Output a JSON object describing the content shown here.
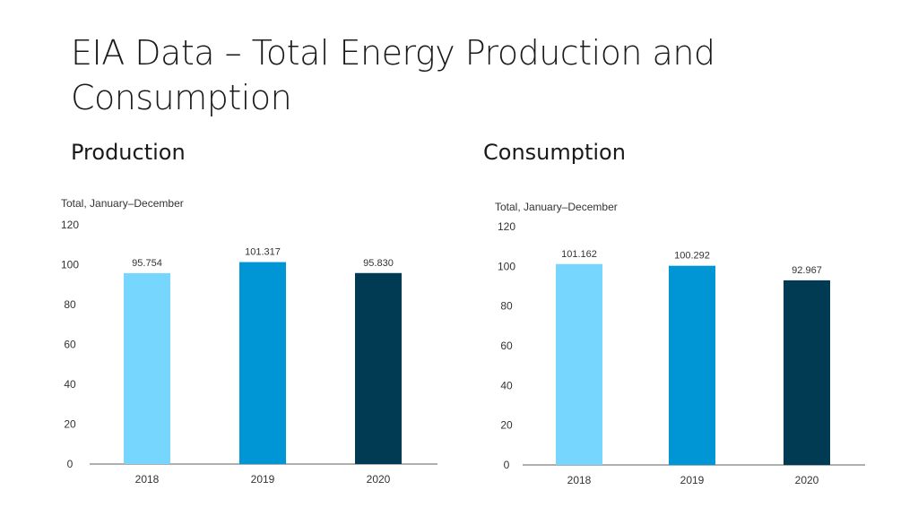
{
  "title": "EIA Data – Total Energy Production and Consumption",
  "chart_data": [
    {
      "type": "bar",
      "heading": "Production",
      "subtitle": "Total, January–December",
      "categories": [
        "2018",
        "2019",
        "2020"
      ],
      "values": [
        95.754,
        101.317,
        95.83
      ],
      "value_labels": [
        "95.754",
        "101.317",
        "95.830"
      ],
      "colors": [
        "#76d6fd",
        "#0096d6",
        "#003a53"
      ],
      "yticks": [
        0,
        20,
        40,
        60,
        80,
        100,
        120
      ],
      "ylim": [
        0,
        120
      ],
      "grid": false
    },
    {
      "type": "bar",
      "heading": "Consumption",
      "subtitle": "Total, January–December",
      "categories": [
        "2018",
        "2019",
        "2020"
      ],
      "values": [
        101.162,
        100.292,
        92.967
      ],
      "value_labels": [
        "101.162",
        "100.292",
        "92.967"
      ],
      "colors": [
        "#76d6fd",
        "#0096d6",
        "#003a53"
      ],
      "yticks": [
        0,
        20,
        40,
        60,
        80,
        100,
        120
      ],
      "ylim": [
        0,
        120
      ],
      "grid": false
    }
  ]
}
